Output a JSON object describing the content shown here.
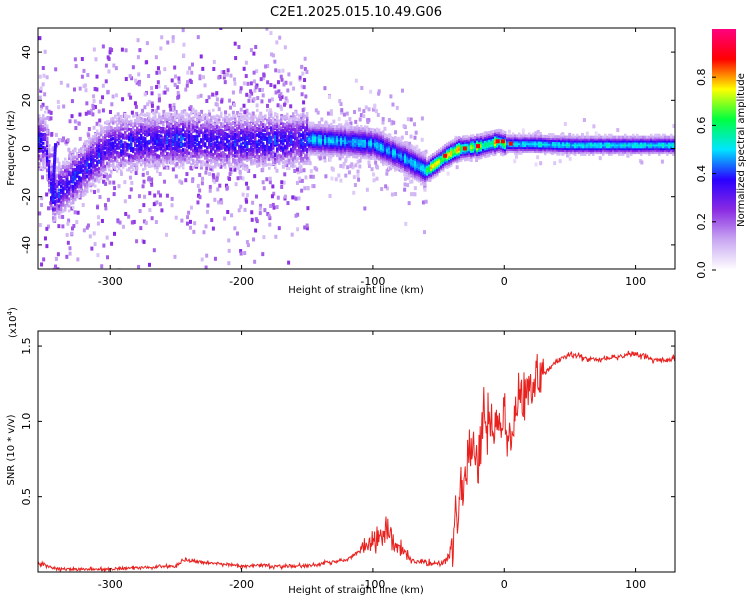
{
  "title": "C2E1.2025.015.10.49.G06",
  "chart_data": [
    {
      "type": "heatmap",
      "xlabel": "Height of straight line (km)",
      "ylabel": "Frequency (Hz)",
      "xlim": [
        -355,
        130
      ],
      "ylim": [
        -50,
        50
      ],
      "x_ticks": [
        -300,
        -200,
        -100,
        0,
        100
      ],
      "y_ticks": [
        -40,
        -20,
        0,
        20,
        40
      ],
      "colorbar": {
        "label": "Normalized spectral amplitude",
        "range": [
          0,
          1
        ],
        "ticks": [
          "0.0",
          "0.2",
          "0.4",
          "0.6",
          "0.8"
        ],
        "colors": [
          "#ffffff",
          "#c9a8f2",
          "#8a2be2",
          "#2a00ff",
          "#00e5ff",
          "#00ff40",
          "#ffff00",
          "#ff0000",
          "#ff0080"
        ]
      },
      "ridge": {
        "x": [
          -350,
          -345,
          -300,
          -250,
          -200,
          -150,
          -120,
          -100,
          -80,
          -60,
          -52,
          -45,
          -35,
          -20,
          -5,
          0,
          20,
          50,
          100,
          130
        ],
        "y": [
          3,
          -20,
          2,
          4,
          3,
          4,
          3,
          2,
          -3,
          -9,
          -6,
          -3,
          0,
          1,
          3,
          2,
          2,
          1.5,
          1.5,
          1.5
        ]
      }
    },
    {
      "type": "line",
      "xlabel": "Height of straight line (km)",
      "ylabel": "SNR (10 * v/v)",
      "y_multiplier": "(x10",
      "y_multiplier_exp": "4",
      "xlim": [
        -355,
        130
      ],
      "ylim": [
        0,
        16000
      ],
      "x_ticks": [
        -300,
        -200,
        -100,
        0,
        100
      ],
      "y_ticks": [
        5000,
        10000,
        15000
      ],
      "y_tick_labels": [
        "0.5",
        "1.0",
        "1.5"
      ],
      "line_color": "#e8211e",
      "series": [
        {
          "x": [
            -355,
            -340,
            -300,
            -250,
            -245,
            -200,
            -150,
            -120,
            -100,
            -90,
            -80,
            -70,
            -60,
            -50,
            -42,
            -38,
            -35,
            -30,
            -25,
            -20,
            -15,
            -10,
            -5,
            0,
            5,
            10,
            15,
            20,
            30,
            40,
            50,
            70,
            100,
            115,
            130
          ],
          "values": [
            600,
            200,
            200,
            400,
            800,
            400,
            400,
            800,
            2000,
            2700,
            1600,
            800,
            600,
            500,
            1000,
            3200,
            4000,
            6500,
            8500,
            7500,
            10500,
            9800,
            9500,
            10000,
            8500,
            12000,
            11800,
            12500,
            13200,
            14000,
            14400,
            14100,
            14500,
            14000,
            14200
          ]
        }
      ]
    }
  ]
}
